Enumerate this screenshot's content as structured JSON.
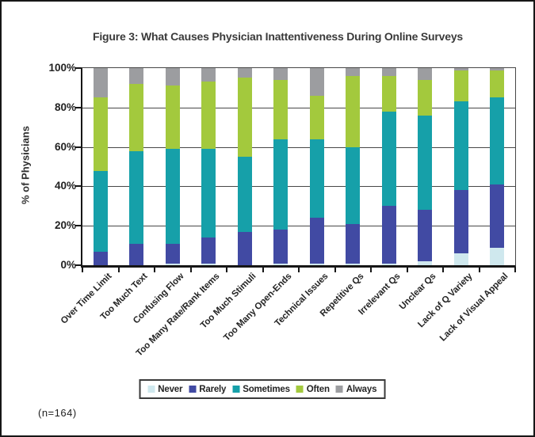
{
  "figure": {
    "title": "Figure 3: What Causes Physician Inattentiveness During Online Surveys",
    "sample_note": "(n=164)"
  },
  "chart_data": {
    "type": "bar",
    "stacked": true,
    "title": "Figure 3: What Causes Physician Inattentiveness During Online Surveys",
    "xlabel": "",
    "ylabel": "% of Physicians",
    "ylim": [
      0,
      100
    ],
    "ytick_labels": [
      "0%",
      "20%",
      "40%",
      "60%",
      "80%",
      "100%"
    ],
    "grid": true,
    "legend_position": "bottom",
    "sample_note": "(n=164)",
    "categories": [
      "Over Time Limit",
      "Too Much Text",
      "Confusing Flow",
      "Too Many Rate/Rank Items",
      "Too Much Stimuli",
      "Too Many Open-Ends",
      "Technical Issues",
      "Repetitive Qs",
      "Irrelevant Qs",
      "Unclear Qs",
      "Lack of Q Variety",
      "Lack of Visual Appeal"
    ],
    "series": [
      {
        "name": "Never",
        "color": "#cfe8ee",
        "values": [
          0,
          0,
          1,
          1,
          0,
          1,
          1,
          1,
          1,
          2,
          6,
          9
        ]
      },
      {
        "name": "Rarely",
        "color": "#414aa3",
        "values": [
          7,
          11,
          10,
          13,
          17,
          17,
          23,
          20,
          29,
          26,
          32,
          32
        ]
      },
      {
        "name": "Sometimes",
        "color": "#16a0a9",
        "values": [
          41,
          47,
          48,
          45,
          38,
          46,
          40,
          39,
          48,
          48,
          45,
          44
        ]
      },
      {
        "name": "Often",
        "color": "#a3c93d",
        "values": [
          37,
          34,
          32,
          34,
          40,
          30,
          22,
          36,
          18,
          18,
          16,
          14
        ]
      },
      {
        "name": "Always",
        "color": "#9c9da0",
        "values": [
          15,
          8,
          9,
          7,
          5,
          6,
          14,
          4,
          4,
          6,
          1,
          1
        ]
      }
    ]
  }
}
